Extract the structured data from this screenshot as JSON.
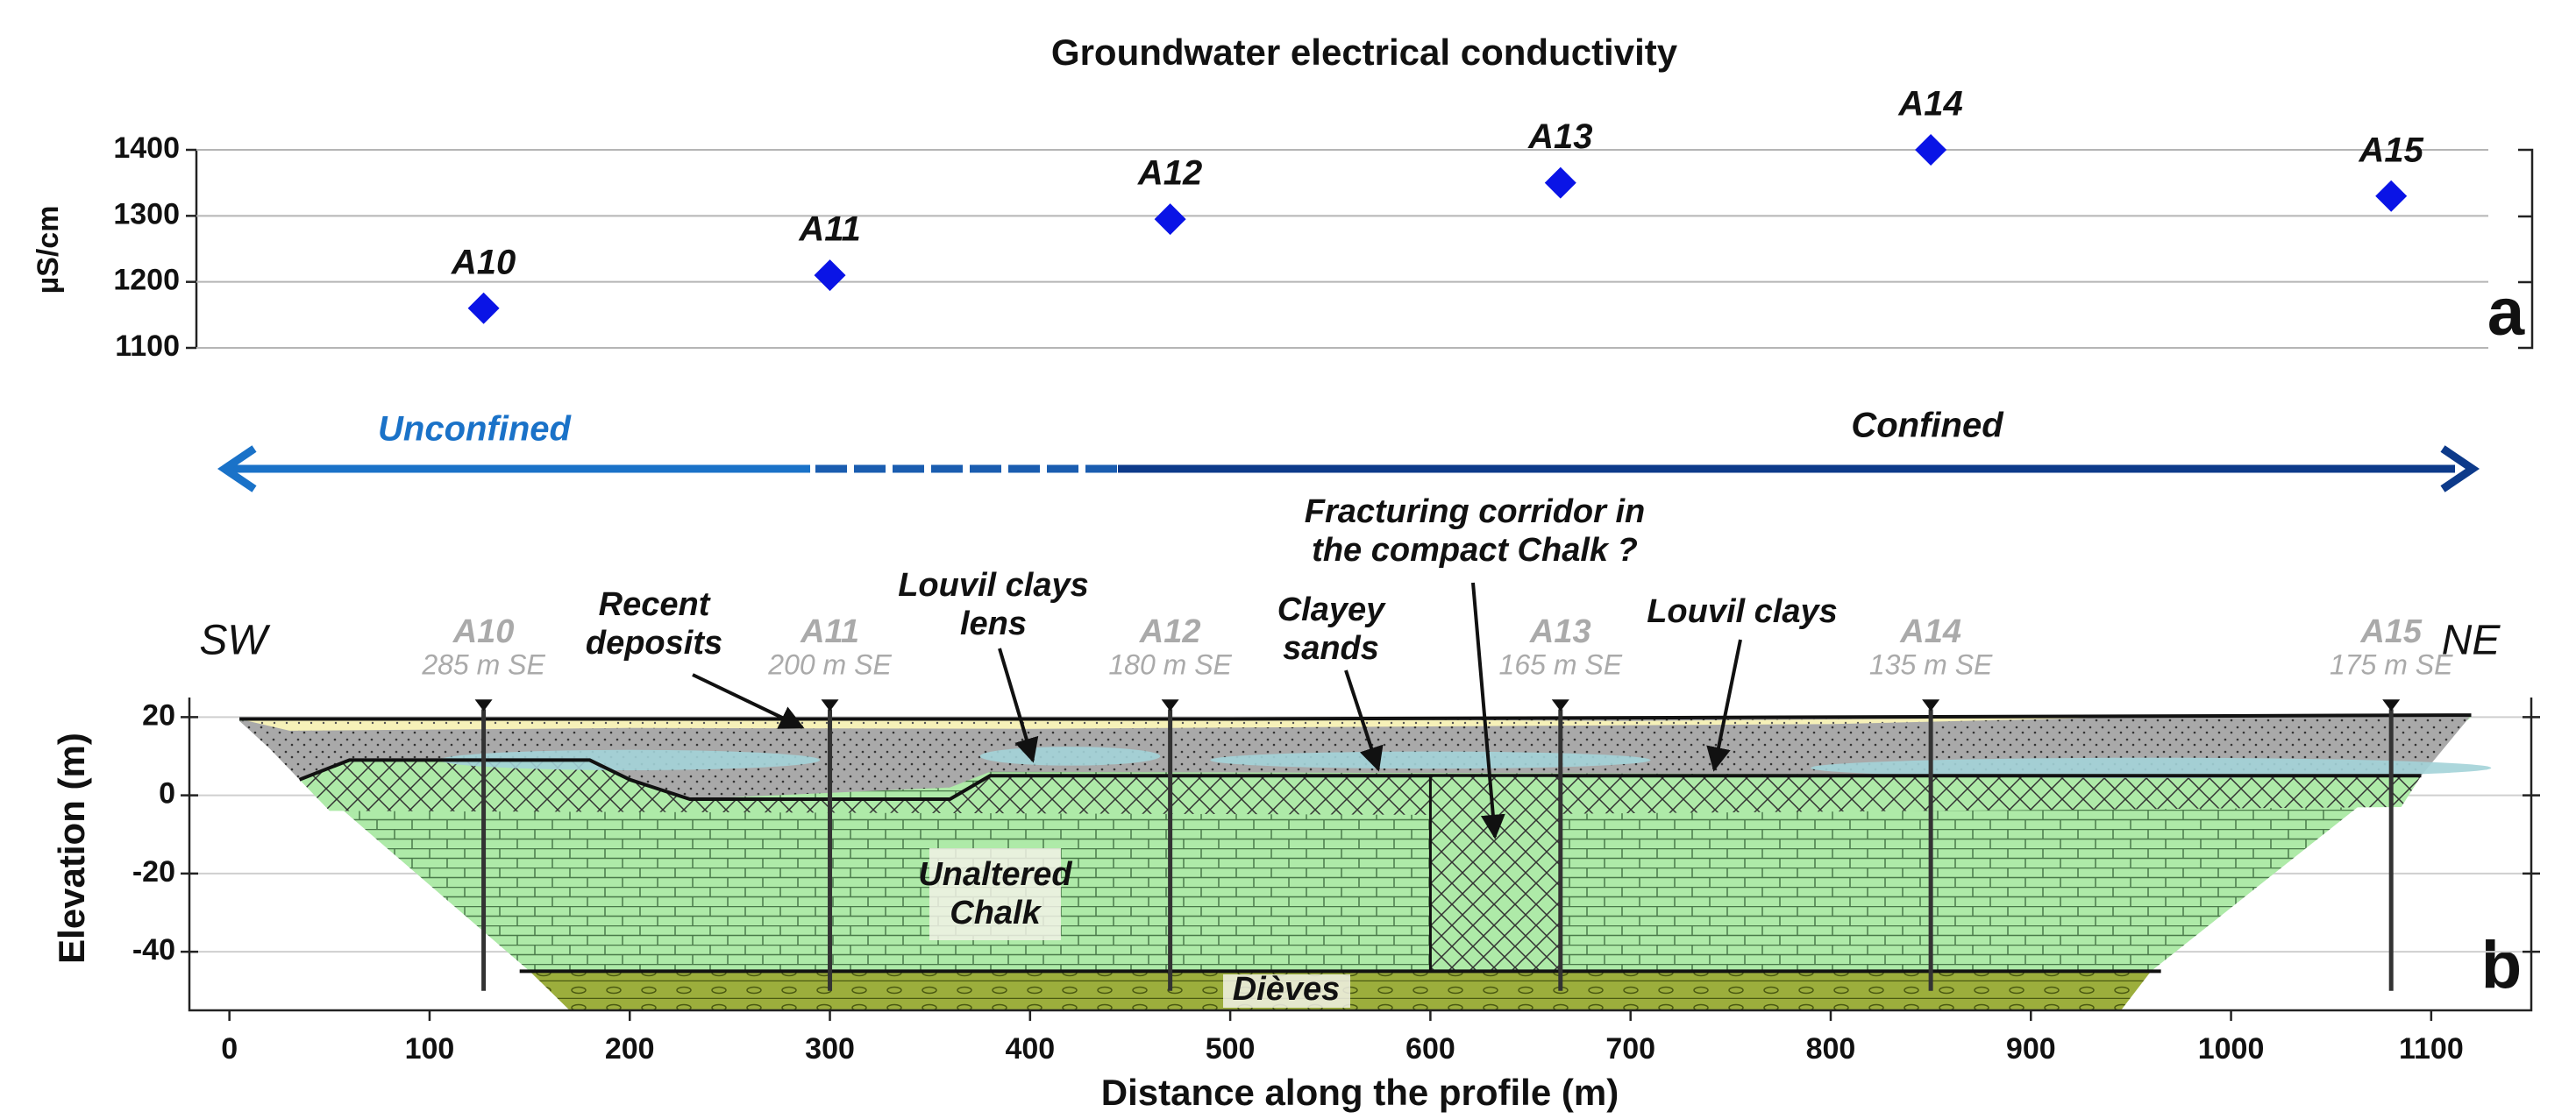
{
  "chart_data": [
    {
      "type": "scatter",
      "title": "Groundwater electrical conductivity",
      "y_label": "µS/cm",
      "panel_label": "a",
      "x": [
        127,
        300,
        470,
        665,
        850,
        1080
      ],
      "values": [
        1160,
        1210,
        1295,
        1350,
        1400,
        1330
      ],
      "point_labels": [
        "A10",
        "A11",
        "A12",
        "A13",
        "A14",
        "A15"
      ],
      "color": "#0a14e6",
      "xlim": [
        -20,
        1150
      ],
      "ylim": [
        1100,
        1400
      ],
      "yticks": [
        1100,
        1200,
        1300,
        1400
      ],
      "grid": true
    },
    {
      "type": "section",
      "panel_label": "b",
      "x_label": "Distance along the profile (m)",
      "y_label": "Elevation (m)",
      "xlim": [
        -20,
        1150
      ],
      "ylim": [
        -55,
        25
      ],
      "xticks": [
        0,
        100,
        200,
        300,
        400,
        500,
        600,
        700,
        800,
        900,
        1000,
        1100
      ],
      "yticks": [
        -40,
        -20,
        0,
        20
      ],
      "regimes": [
        "Unconfined",
        "Confined"
      ],
      "side_labels": [
        "SW",
        "NE"
      ],
      "wells": [
        {
          "name": "A10",
          "offset": "285 m SE",
          "x": 127
        },
        {
          "name": "A11",
          "offset": "200 m SE",
          "x": 300
        },
        {
          "name": "A12",
          "offset": "180 m SE",
          "x": 470
        },
        {
          "name": "A13",
          "offset": "165 m SE",
          "x": 665
        },
        {
          "name": "A14",
          "offset": "135 m SE",
          "x": 850
        },
        {
          "name": "A15",
          "offset": "175 m SE",
          "x": 1080
        }
      ],
      "annotations": [
        {
          "lines": [
            "Recent",
            "deposits"
          ]
        },
        {
          "lines": [
            "Louvil clays",
            "lens"
          ]
        },
        {
          "lines": [
            "Clayey",
            "sands"
          ]
        },
        {
          "lines": [
            "Fracturing corridor in",
            "the compact Chalk ?"
          ]
        },
        {
          "lines": [
            "Louvil clays"
          ]
        }
      ],
      "units": [
        {
          "lines": [
            "Unaltered",
            "Chalk"
          ]
        },
        {
          "lines": [
            "Dièves"
          ]
        }
      ]
    }
  ]
}
